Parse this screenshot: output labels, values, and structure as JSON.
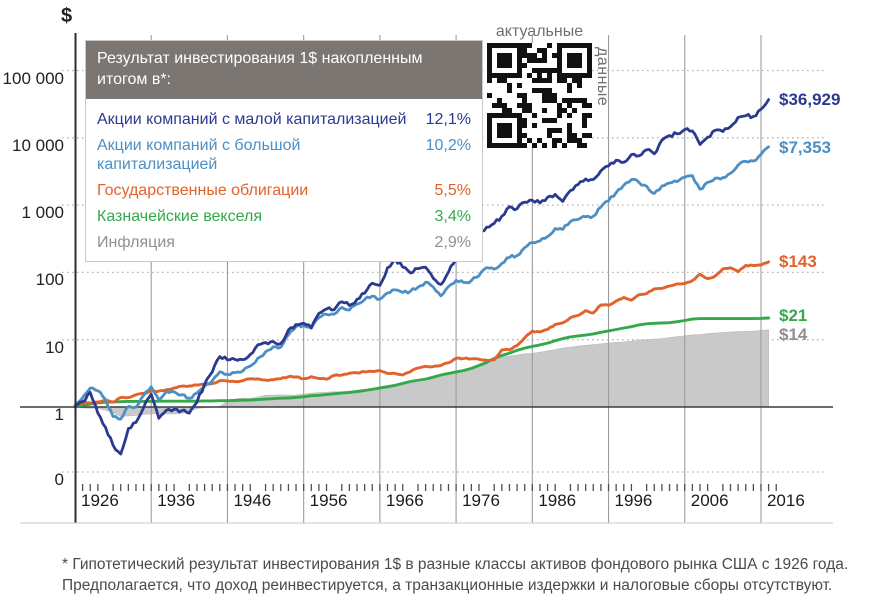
{
  "chart_data": {
    "type": "line",
    "title": "Результат инвестирования 1$ накопленным итогом в*:",
    "y_unit": "$",
    "yscale": "log",
    "ylim": [
      0.1,
      200000
    ],
    "x_range": [
      1926,
      2017
    ],
    "start_year": 1926,
    "grid": "horizontal-dotted, vertical-decade-lines",
    "legend_position": "top-left box",
    "x_ticks": [
      "1926",
      "1936",
      "1946",
      "1956",
      "1966",
      "1976",
      "1986",
      "1996",
      "2006",
      "2016"
    ],
    "y_ticks": [
      {
        "label": "100 000",
        "value": 100000
      },
      {
        "label": "10 000",
        "value": 10000
      },
      {
        "label": "1 000",
        "value": 1000
      },
      {
        "label": "100",
        "value": 100
      },
      {
        "label": "10",
        "value": 10
      },
      {
        "label": "1",
        "value": 1
      },
      {
        "label": "0",
        "value": null
      }
    ],
    "series": [
      {
        "name": "Акции компаний с малой капитализацией",
        "cagr": "12,1%",
        "color": "#2b3a90",
        "end_label": "$36,929",
        "end_value": 36929,
        "values": [
          1.0,
          1.2,
          1.65,
          0.81,
          0.5,
          0.27,
          0.2,
          0.48,
          0.59,
          0.98,
          1.55,
          0.68,
          0.9,
          0.92,
          0.88,
          0.81,
          1.18,
          2.2,
          3.3,
          5.6,
          5.0,
          5.1,
          5.05,
          6.05,
          8.4,
          9.1,
          9.4,
          8.8,
          14.0,
          16.8,
          17.6,
          15.0,
          24.6,
          28.6,
          27.8,
          36.6,
          32.3,
          39.8,
          49.0,
          69.0,
          64.2,
          117,
          159,
          120,
          98,
          114,
          119,
          82,
          66,
          101,
          158,
          198,
          243,
          350,
          470,
          535,
          685,
          950,
          885,
          1105,
          1180,
          1075,
          1310,
          1440,
          1135,
          1645,
          2025,
          2450,
          2400,
          3230,
          3810,
          4650,
          4330,
          5630,
          5400,
          6640,
          5780,
          9250,
          10820,
          11470,
          13300,
          12640,
          7960,
          10190,
          12940,
          12400,
          14630,
          20190,
          21200,
          20800,
          26500,
          36929
        ]
      },
      {
        "name": "Акции компаний с большой капитализацией",
        "cagr": "10,2%",
        "color": "#4c8fc4",
        "end_label": "$7,353",
        "end_value": 7353,
        "values": [
          1.0,
          1.37,
          1.9,
          1.74,
          1.3,
          0.72,
          0.66,
          1.02,
          1.0,
          1.48,
          2.0,
          1.29,
          1.7,
          1.69,
          1.52,
          1.35,
          1.62,
          2.04,
          2.44,
          3.33,
          3.07,
          3.24,
          3.42,
          4.05,
          5.33,
          6.61,
          7.83,
          7.76,
          11.8,
          15.6,
          16.5,
          14.8,
          21.2,
          23.8,
          23.9,
          30.3,
          27.6,
          33.9,
          39.4,
          44.4,
          39.9,
          49.5,
          55.0,
          50.3,
          52.5,
          60.0,
          71.4,
          60.9,
          44.8,
          61.5,
          76.1,
          70.7,
          75.3,
          89.3,
          118,
          112,
          136,
          167,
          178,
          234,
          278,
          293,
          341,
          449,
          435,
          568,
          612,
          673,
          682,
          938,
          1154,
          1539,
          1979,
          2395,
          2177,
          1918,
          1494,
          1923,
          2133,
          2238,
          2591,
          2734,
          1722,
          2178,
          2506,
          2559,
          2968,
          3929,
          4467,
          4528,
          5668,
          7353
        ]
      },
      {
        "name": "Государственные облигации",
        "cagr": "5,5%",
        "color": "#e2622b",
        "end_label": "$143",
        "end_value": 143,
        "values": [
          1.05,
          1.14,
          1.15,
          1.19,
          1.25,
          1.18,
          1.38,
          1.38,
          1.52,
          1.6,
          1.72,
          1.72,
          1.81,
          1.92,
          2.04,
          2.06,
          2.12,
          2.17,
          2.23,
          2.47,
          2.44,
          2.38,
          2.46,
          2.62,
          2.62,
          2.51,
          2.54,
          2.63,
          2.82,
          2.79,
          2.63,
          2.83,
          2.65,
          2.59,
          2.95,
          2.98,
          3.18,
          3.22,
          3.33,
          3.36,
          3.48,
          3.16,
          3.15,
          2.99,
          3.35,
          3.8,
          4.02,
          3.98,
          4.15,
          4.53,
          5.3,
          5.26,
          5.2,
          5.14,
          4.94,
          5.03,
          7.06,
          7.09,
          8.19,
          10.7,
          13.4,
          13.0,
          14.2,
          16.8,
          17.8,
          21.2,
          22.9,
          27.1,
          25.0,
          32.8,
          32.5,
          37.6,
          42.4,
          38.6,
          46.7,
          48.4,
          57.0,
          57.8,
          62.8,
          67.7,
          68.5,
          75.3,
          94.4,
          80.5,
          88.3,
          113,
          117,
          102,
          127,
          126,
          128,
          143
        ]
      },
      {
        "name": "Казначейские векселя",
        "cagr": "3,4%",
        "color": "#33a94c",
        "end_label": "$21",
        "end_value": 21,
        "values": [
          1.03,
          1.06,
          1.1,
          1.15,
          1.18,
          1.19,
          1.2,
          1.21,
          1.21,
          1.21,
          1.21,
          1.22,
          1.22,
          1.22,
          1.22,
          1.22,
          1.22,
          1.23,
          1.23,
          1.24,
          1.24,
          1.25,
          1.26,
          1.27,
          1.29,
          1.31,
          1.33,
          1.35,
          1.36,
          1.39,
          1.42,
          1.47,
          1.49,
          1.53,
          1.57,
          1.61,
          1.65,
          1.7,
          1.76,
          1.83,
          1.92,
          2.0,
          2.1,
          2.24,
          2.39,
          2.49,
          2.59,
          2.77,
          2.99,
          3.16,
          3.32,
          3.49,
          3.74,
          4.13,
          4.59,
          5.27,
          5.82,
          6.33,
          6.95,
          7.49,
          7.95,
          8.38,
          8.91,
          9.67,
          10.4,
          11.0,
          11.4,
          11.7,
          12.2,
          12.9,
          13.5,
          14.2,
          14.9,
          15.6,
          16.6,
          17.2,
          17.5,
          17.7,
          17.9,
          18.5,
          19.3,
          20.2,
          20.6,
          20.6,
          20.6,
          20.6,
          20.6,
          20.6,
          20.6,
          20.6,
          20.7,
          21.0
        ]
      },
      {
        "name": "Инфляция",
        "cagr": "2,9%",
        "color": "#909090",
        "fill": "#c9c9c9",
        "type": "area",
        "end_label": "$14",
        "end_value": 14,
        "values": [
          0.99,
          0.97,
          0.96,
          0.96,
          0.9,
          0.82,
          0.73,
          0.74,
          0.75,
          0.78,
          0.79,
          0.81,
          0.79,
          0.79,
          0.8,
          0.87,
          0.95,
          0.98,
          1.0,
          1.02,
          1.21,
          1.32,
          1.35,
          1.33,
          1.41,
          1.49,
          1.5,
          1.51,
          1.5,
          1.51,
          1.55,
          1.6,
          1.63,
          1.65,
          1.68,
          1.69,
          1.71,
          1.74,
          1.76,
          1.79,
          1.85,
          1.91,
          2.0,
          2.12,
          2.24,
          2.31,
          2.39,
          2.6,
          2.92,
          3.12,
          3.27,
          3.49,
          3.81,
          4.32,
          4.86,
          5.29,
          5.5,
          5.71,
          5.93,
          6.16,
          6.23,
          6.5,
          6.79,
          7.1,
          7.54,
          7.77,
          8.0,
          8.22,
          8.44,
          8.65,
          8.94,
          9.09,
          9.24,
          9.49,
          9.81,
          9.96,
          10.2,
          10.4,
          10.7,
          11.1,
          11.4,
          11.8,
          11.9,
          12.3,
          12.5,
          12.8,
          13.0,
          13.2,
          13.3,
          13.4,
          13.7,
          14.0
        ]
      }
    ]
  },
  "legend": {
    "title": "Результат инвестирования 1$ накопленным итогом в*:"
  },
  "qr": {
    "caption_top": "актуальные",
    "caption_side": "данные"
  },
  "footnote": "* Гипотетический результат инвестирования 1$ в разные классы активов фондового рынка США с 1926 года. Предполагается, что доход реинвестируется, а транзакционные издержки и налоговые сборы отсутствуют."
}
